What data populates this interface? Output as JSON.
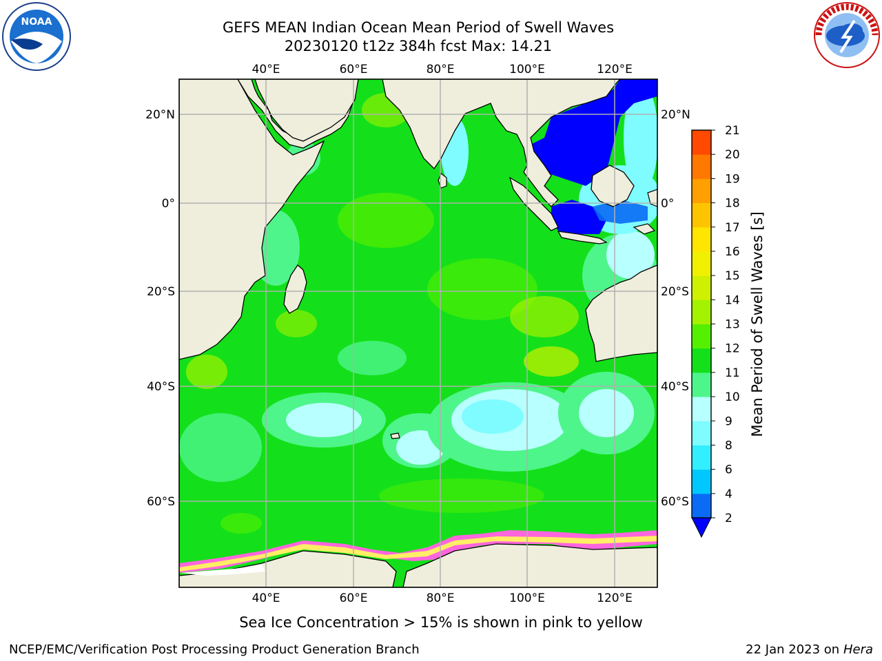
{
  "header": {
    "title_line1": "GEFS MEAN Indian Ocean Mean Period of Swell Waves",
    "title_line2": "20230120 t12z 384h fcst   Max: 14.21"
  },
  "logos": {
    "left": "NOAA",
    "left_ring": "NATIONAL OCEANIC AND ATMOSPHERIC ADMINISTRATION · U.S. DEPARTMENT OF COMMERCE",
    "right_ring": "NATIONAL WEATHER SERVICE"
  },
  "map": {
    "lon_labels": [
      "40°E",
      "60°E",
      "80°E",
      "100°E",
      "120°E"
    ],
    "lat_labels": [
      "20°N",
      "0°",
      "20°S",
      "40°S",
      "60°S"
    ],
    "land_color": "#efeedd",
    "grid_color": "#b0b0b0"
  },
  "colorbar": {
    "label": "Mean Period of Swell Waves [s]",
    "ticks": [
      "2",
      "4",
      "6",
      "8",
      "9",
      "10",
      "11",
      "12",
      "13",
      "14",
      "15",
      "16",
      "17",
      "18",
      "19",
      "20",
      "21"
    ],
    "colors": [
      "#0a6cf5",
      "#00c8ff",
      "#33eeff",
      "#7ffcff",
      "#b8ffff",
      "#4ef58a",
      "#13e01a",
      "#55f000",
      "#a3f200",
      "#cff000",
      "#f0f000",
      "#ffe500",
      "#ffc400",
      "#ff9f00",
      "#ff7800",
      "#ff4a00",
      "#ff1800",
      "#ff0000"
    ],
    "extend_color": "#0000ff"
  },
  "annotation": "Sea Ice Concentration > 15% is shown in pink to yellow",
  "footer": {
    "left": "NCEP/EMC/Verification Post Processing Product Generation Branch",
    "right_date": "22 Jan 2023 on ",
    "right_host": "Hera"
  }
}
